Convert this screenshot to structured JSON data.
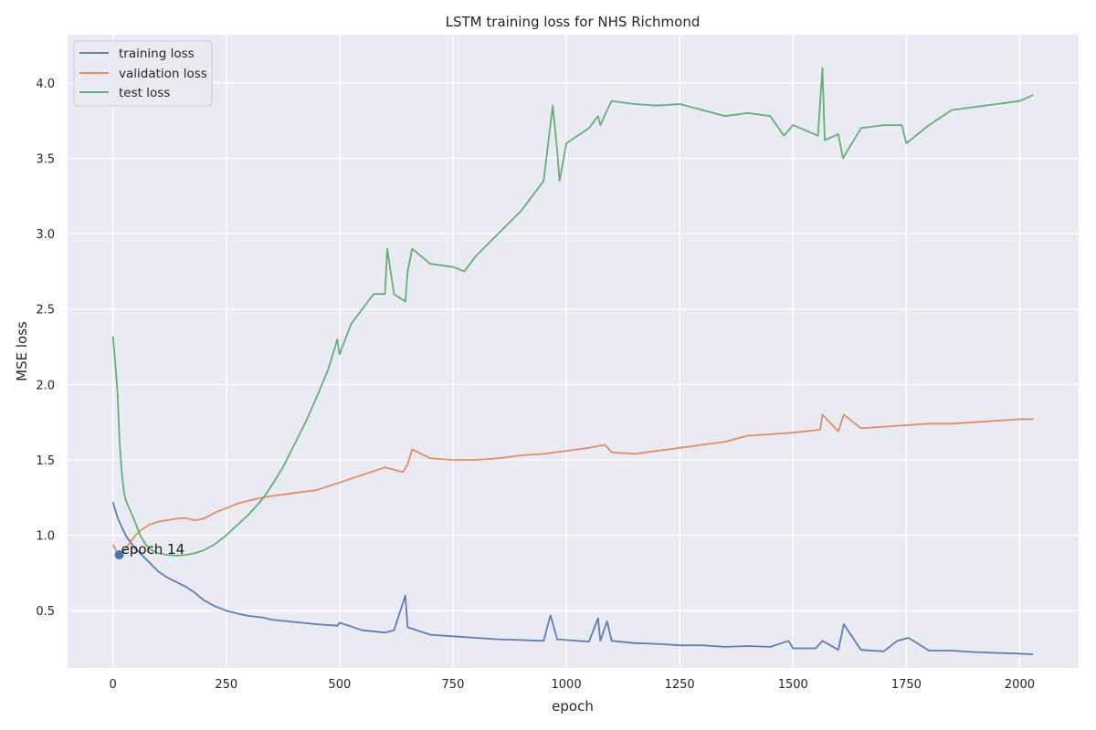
{
  "chart_data": {
    "type": "line",
    "title": "LSTM training loss for NHS Richmond",
    "xlabel": "epoch",
    "ylabel": "MSE loss",
    "xlim": [
      -100,
      2130
    ],
    "ylim": [
      0.12,
      4.32
    ],
    "xticks": [
      0,
      250,
      500,
      750,
      1000,
      1250,
      1500,
      1750,
      2000
    ],
    "yticks": [
      0.5,
      1.0,
      1.5,
      2.0,
      2.5,
      3.0,
      3.5,
      4.0
    ],
    "xtick_labels": [
      "0",
      "250",
      "500",
      "750",
      "1000",
      "1250",
      "1500",
      "1750",
      "2000"
    ],
    "ytick_labels": [
      "0.5",
      "1.0",
      "1.5",
      "2.0",
      "2.5",
      "3.0",
      "3.5",
      "4.0"
    ],
    "grid": true,
    "legend_position": "top-left",
    "colors": {
      "background": "#eaeaf2",
      "grid": "#ffffff",
      "training": "#4c72b0",
      "validation": "#dd8452",
      "test": "#55a868"
    },
    "series": [
      {
        "name": "training loss",
        "color": "#4c72b0",
        "x": [
          0,
          10,
          20,
          30,
          40,
          50,
          60,
          80,
          100,
          120,
          140,
          160,
          180,
          200,
          225,
          250,
          275,
          300,
          330,
          350,
          400,
          450,
          495,
          500,
          550,
          600,
          620,
          645,
          650,
          700,
          750,
          800,
          850,
          900,
          950,
          965,
          980,
          1000,
          1050,
          1070,
          1075,
          1090,
          1100,
          1150,
          1200,
          1250,
          1300,
          1350,
          1400,
          1450,
          1490,
          1500,
          1550,
          1565,
          1600,
          1612,
          1650,
          1700,
          1730,
          1755,
          1800,
          1850,
          1900,
          1950,
          2000,
          2030
        ],
        "y": [
          1.22,
          1.12,
          1.05,
          0.99,
          0.95,
          0.91,
          0.88,
          0.82,
          0.76,
          0.72,
          0.69,
          0.66,
          0.62,
          0.57,
          0.53,
          0.5,
          0.48,
          0.465,
          0.455,
          0.44,
          0.425,
          0.41,
          0.4,
          0.42,
          0.37,
          0.355,
          0.37,
          0.6,
          0.39,
          0.34,
          0.33,
          0.32,
          0.31,
          0.305,
          0.3,
          0.47,
          0.31,
          0.305,
          0.295,
          0.45,
          0.3,
          0.43,
          0.3,
          0.285,
          0.28,
          0.27,
          0.27,
          0.26,
          0.265,
          0.26,
          0.3,
          0.25,
          0.25,
          0.3,
          0.24,
          0.41,
          0.24,
          0.23,
          0.3,
          0.32,
          0.235,
          0.235,
          0.225,
          0.22,
          0.215,
          0.21
        ]
      },
      {
        "name": "validation loss",
        "color": "#dd8452",
        "x": [
          0,
          10,
          20,
          30,
          40,
          50,
          60,
          80,
          100,
          120,
          140,
          160,
          180,
          200,
          225,
          250,
          275,
          300,
          330,
          350,
          400,
          450,
          500,
          550,
          600,
          640,
          650,
          660,
          700,
          750,
          800,
          850,
          900,
          950,
          1000,
          1050,
          1085,
          1100,
          1150,
          1200,
          1250,
          1300,
          1350,
          1400,
          1450,
          1500,
          1560,
          1565,
          1600,
          1612,
          1650,
          1700,
          1750,
          1800,
          1850,
          1900,
          1950,
          2000,
          2030
        ],
        "y": [
          0.94,
          0.88,
          0.88,
          0.92,
          0.96,
          1.0,
          1.03,
          1.07,
          1.09,
          1.1,
          1.11,
          1.115,
          1.1,
          1.11,
          1.15,
          1.18,
          1.21,
          1.23,
          1.25,
          1.26,
          1.28,
          1.3,
          1.35,
          1.4,
          1.45,
          1.42,
          1.47,
          1.57,
          1.51,
          1.5,
          1.5,
          1.51,
          1.53,
          1.54,
          1.56,
          1.58,
          1.6,
          1.55,
          1.54,
          1.56,
          1.58,
          1.6,
          1.62,
          1.66,
          1.67,
          1.68,
          1.7,
          1.8,
          1.69,
          1.8,
          1.71,
          1.72,
          1.73,
          1.74,
          1.74,
          1.75,
          1.76,
          1.77,
          1.77
        ]
      },
      {
        "name": "test loss",
        "color": "#55a868",
        "x": [
          0,
          5,
          10,
          15,
          20,
          25,
          30,
          40,
          50,
          60,
          70,
          80,
          100,
          120,
          140,
          160,
          180,
          200,
          225,
          250,
          275,
          300,
          330,
          350,
          375,
          400,
          425,
          450,
          475,
          495,
          500,
          525,
          550,
          575,
          600,
          605,
          620,
          645,
          650,
          660,
          700,
          750,
          775,
          800,
          850,
          900,
          950,
          962,
          970,
          980,
          985,
          1000,
          1050,
          1070,
          1075,
          1090,
          1100,
          1150,
          1200,
          1250,
          1300,
          1350,
          1400,
          1450,
          1480,
          1500,
          1555,
          1565,
          1570,
          1600,
          1610,
          1650,
          1700,
          1740,
          1750,
          1800,
          1850,
          1900,
          1950,
          2000,
          2030
        ],
        "y": [
          2.32,
          2.15,
          1.95,
          1.6,
          1.4,
          1.27,
          1.22,
          1.15,
          1.08,
          1.0,
          0.95,
          0.91,
          0.88,
          0.87,
          0.865,
          0.87,
          0.88,
          0.9,
          0.94,
          1.0,
          1.07,
          1.14,
          1.24,
          1.33,
          1.45,
          1.6,
          1.75,
          1.92,
          2.1,
          2.3,
          2.2,
          2.4,
          2.5,
          2.6,
          2.6,
          2.9,
          2.6,
          2.55,
          2.75,
          2.9,
          2.8,
          2.78,
          2.75,
          2.85,
          3.0,
          3.15,
          3.35,
          3.65,
          3.85,
          3.55,
          3.35,
          3.6,
          3.7,
          3.78,
          3.72,
          3.82,
          3.88,
          3.86,
          3.85,
          3.86,
          3.82,
          3.78,
          3.8,
          3.78,
          3.65,
          3.72,
          3.65,
          4.1,
          3.62,
          3.66,
          3.5,
          3.7,
          3.72,
          3.72,
          3.6,
          3.72,
          3.82,
          3.84,
          3.86,
          3.88,
          3.92
        ]
      }
    ],
    "annotations": [
      {
        "text": "epoch 14",
        "x": 14,
        "y": 0.87,
        "marker_color": "#4c72b0"
      }
    ]
  }
}
